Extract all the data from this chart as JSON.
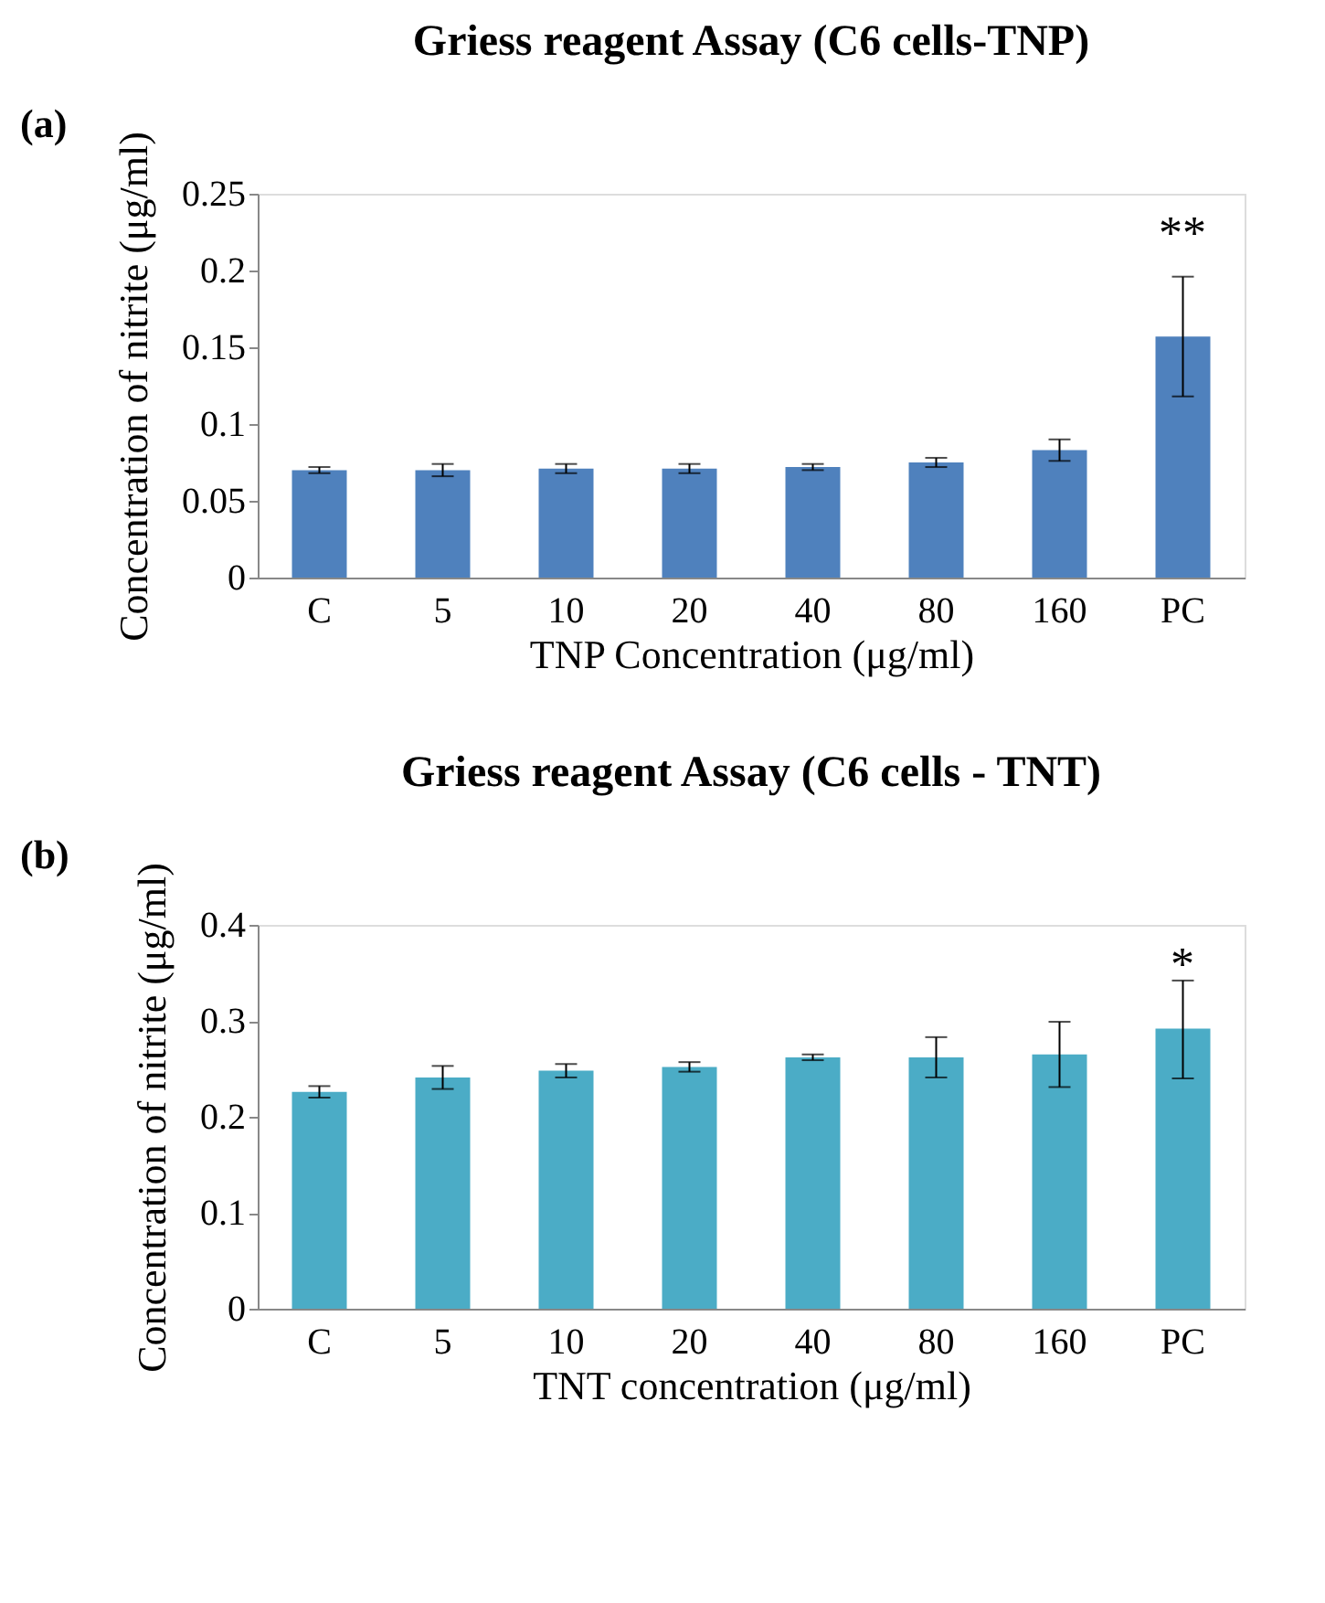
{
  "chart_data": [
    {
      "type": "bar",
      "title": "Griess reagent Assay (C6 cells-TNP)",
      "xlabel": "TNP Concentration  (μg/ml)",
      "ylabel": "Concentration  of nitrite (μg/ml)",
      "categories": [
        "C",
        "5",
        "10",
        "20",
        "40",
        "80",
        "160",
        "PC"
      ],
      "values": [
        0.07,
        0.07,
        0.071,
        0.071,
        0.072,
        0.075,
        0.083,
        0.157
      ],
      "errors": [
        0.002,
        0.004,
        0.003,
        0.003,
        0.002,
        0.003,
        0.007,
        [
          0.118,
          0.196
        ]
      ],
      "color": "#4f81bd",
      "ylim": [
        0,
        0.25
      ],
      "yticks": [
        0,
        0.05,
        0.1,
        0.15,
        0.2,
        0.25
      ],
      "grid": false,
      "annotations": [
        "(a)",
        "**"
      ]
    },
    {
      "type": "bar",
      "title": "Griess reagent Assay (C6 cells - TNT)",
      "xlabel": "TNT concentration  (μg/ml)",
      "ylabel": "Concentration  of nitrite (μg/ml)",
      "categories": [
        "C",
        "5",
        "10",
        "20",
        "40",
        "80",
        "160",
        "PC"
      ],
      "values": [
        0.226,
        0.241,
        0.248,
        0.252,
        0.262,
        0.262,
        0.265,
        0.292
      ],
      "errors": [
        0.006,
        0.012,
        0.007,
        0.005,
        0.003,
        0.021,
        0.034,
        [
          0.24,
          0.342
        ]
      ],
      "color": "#4bacc6",
      "ylim": [
        0,
        0.4
      ],
      "yticks": [
        0,
        0.1,
        0.2,
        0.3,
        0.4
      ],
      "grid": false,
      "annotations": [
        "(b)",
        "*"
      ]
    }
  ]
}
